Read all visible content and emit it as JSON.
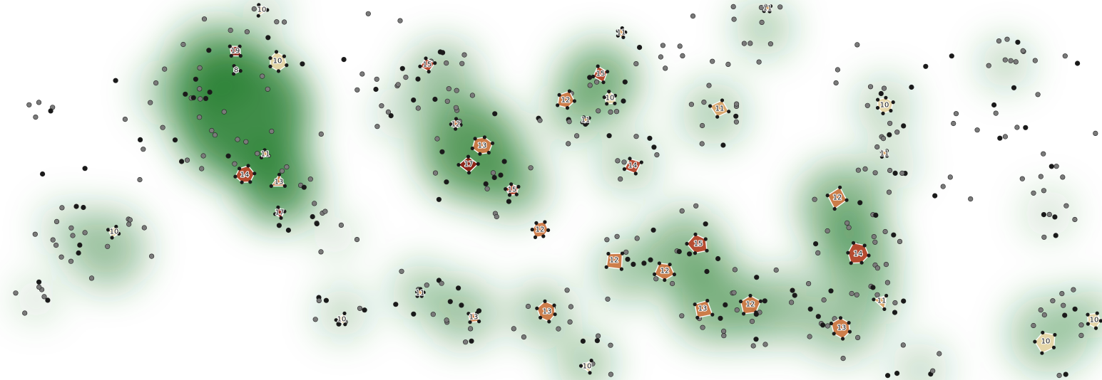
{
  "map": {
    "colors": {
      "density": "#1f7a2a",
      "point_dark": "#1a1a1a",
      "point_light": "#7a7a7a",
      "cluster_scale": [
        "#e8d7a8",
        "#dca76b",
        "#cf7a46",
        "#b9472d",
        "#8f1f14"
      ]
    },
    "clusters": [
      {
        "label": "10",
        "count": 10
      },
      {
        "label": "19",
        "count": 19
      },
      {
        "label": "10",
        "count": 10
      },
      {
        "label": "8",
        "count": 8
      },
      {
        "label": "15",
        "count": 15
      },
      {
        "label": "11",
        "count": 11
      },
      {
        "label": "15",
        "count": 15
      },
      {
        "label": "12",
        "count": 12
      },
      {
        "label": "10",
        "count": 10
      },
      {
        "label": "11",
        "count": 11
      },
      {
        "label": "11",
        "count": 11
      },
      {
        "label": "10",
        "count": 10
      },
      {
        "label": "11",
        "count": 11
      },
      {
        "label": "12",
        "count": 12
      },
      {
        "label": "13",
        "count": 13
      },
      {
        "label": "17",
        "count": 17
      },
      {
        "label": "11",
        "count": 11
      },
      {
        "label": "14",
        "count": 14
      },
      {
        "label": "13",
        "count": 13
      },
      {
        "label": "17",
        "count": 17
      },
      {
        "label": "15",
        "count": 15
      },
      {
        "label": "14",
        "count": 14
      },
      {
        "label": "10",
        "count": 10
      },
      {
        "label": "12",
        "count": 12
      },
      {
        "label": "12",
        "count": 12
      },
      {
        "label": "15",
        "count": 15
      },
      {
        "label": "14",
        "count": 14
      },
      {
        "label": "12",
        "count": 12
      },
      {
        "label": "12",
        "count": 12
      },
      {
        "label": "11",
        "count": 11
      },
      {
        "label": "10",
        "count": 10
      },
      {
        "label": "13",
        "count": 13
      },
      {
        "label": "13",
        "count": 13
      },
      {
        "label": "13",
        "count": 13
      },
      {
        "label": "12",
        "count": 12
      },
      {
        "label": "13",
        "count": 13
      },
      {
        "label": "10",
        "count": 10
      },
      {
        "label": "10",
        "count": 10
      },
      {
        "label": "10",
        "count": 10
      },
      {
        "label": "11",
        "count": 11
      },
      {
        "label": "11",
        "count": 11
      }
    ]
  }
}
